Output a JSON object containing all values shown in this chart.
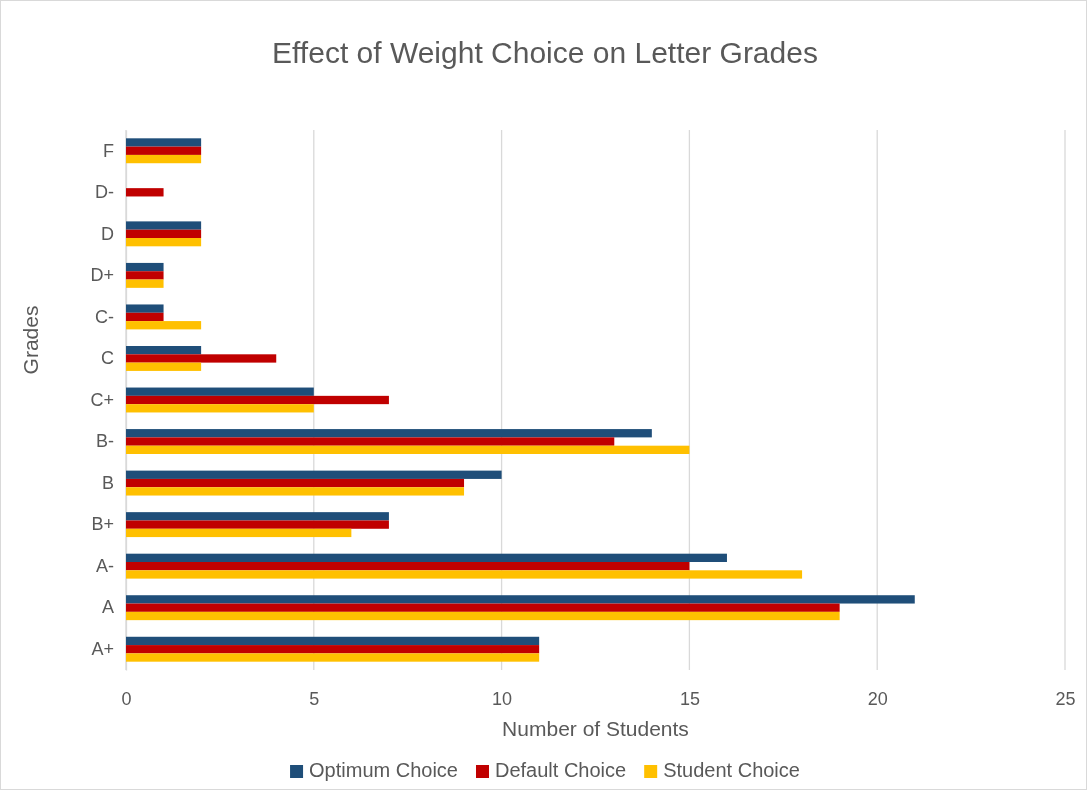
{
  "chart_data": {
    "type": "bar",
    "orientation": "horizontal",
    "title": "Effect of Weight Choice on Letter Grades",
    "xlabel": "Number of Students",
    "ylabel": "Grades",
    "categories": [
      "F",
      "D-",
      "D",
      "D+",
      "C-",
      "C",
      "C+",
      "B-",
      "B",
      "B+",
      "A-",
      "A",
      "A+"
    ],
    "series": [
      {
        "name": "Optimum Choice",
        "color": "#1f4e79",
        "values": [
          2,
          0,
          2,
          1,
          1,
          2,
          5,
          14,
          10,
          7,
          16,
          21,
          11
        ]
      },
      {
        "name": "Default Choice",
        "color": "#c00000",
        "values": [
          2,
          1,
          2,
          1,
          1,
          4,
          7,
          13,
          9,
          7,
          15,
          19,
          11
        ]
      },
      {
        "name": "Student Choice",
        "color": "#ffc000",
        "values": [
          2,
          0,
          2,
          1,
          2,
          2,
          5,
          15,
          9,
          6,
          18,
          19,
          11
        ]
      }
    ],
    "xlim": [
      0,
      25
    ],
    "xticks": [
      0,
      5,
      10,
      15,
      20,
      25
    ],
    "grid": "x",
    "legend": "bottom"
  }
}
